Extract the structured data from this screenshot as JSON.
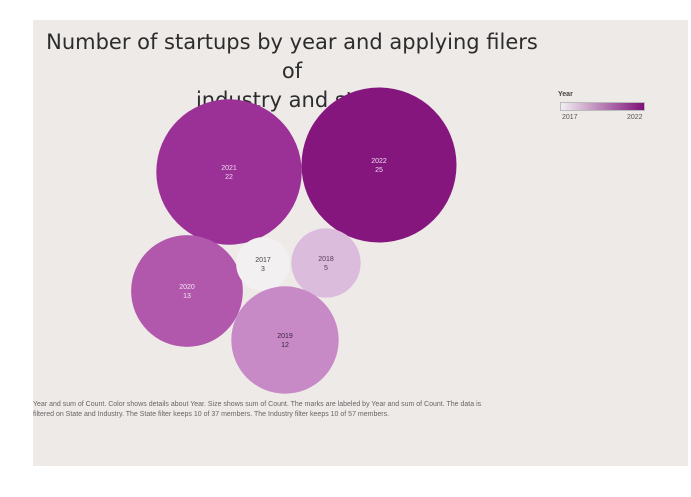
{
  "chart_data": {
    "type": "bubble",
    "title": "Number of startups by year and applying filers of industry and state",
    "title_lines": [
      "Number of startups by year and applying filers of",
      "industry and state"
    ],
    "legend": {
      "title": "Year",
      "min_label": "2017",
      "max_label": "2022",
      "color_start": "#f2eef2",
      "color_end": "#7e1178"
    },
    "points": [
      {
        "year": "2021",
        "count": "22",
        "color": "#9b3096",
        "label_color": "#f3d9f1"
      },
      {
        "year": "2022",
        "count": "25",
        "color": "#84167e",
        "label_color": "#f3d9f1"
      },
      {
        "year": "2020",
        "count": "13",
        "color": "#b158ad",
        "label_color": "#f6e4f4"
      },
      {
        "year": "2017",
        "count": "3",
        "color": "#f3f0f2",
        "label_color": "#444444"
      },
      {
        "year": "2018",
        "count": "5",
        "color": "#dcbcdc",
        "label_color": "#5a3a58"
      },
      {
        "year": "2019",
        "count": "12",
        "color": "#c78ac7",
        "label_color": "#3d1f3b"
      }
    ],
    "caption_lines": [
      "Year and sum of Count.  Color shows details about Year.  Size shows sum of Count.  The marks are labeled by Year and sum of Count. The data is",
      "filtered on State and Industry. The State filter keeps 10 of 37 members. The Industry filter keeps 10 of 57 members."
    ]
  }
}
